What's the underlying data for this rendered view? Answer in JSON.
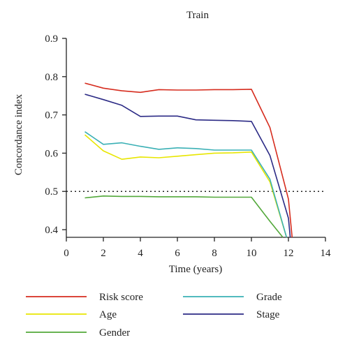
{
  "chart_data": {
    "type": "line",
    "title": "Train",
    "xlabel": "Time (years)",
    "ylabel": "Concordance index",
    "xlim": [
      0,
      14
    ],
    "ylim": [
      0.38,
      0.9
    ],
    "xticks": [
      0,
      2,
      4,
      6,
      8,
      10,
      12,
      14
    ],
    "xtick_labels": [
      "0",
      "2",
      "4",
      "6",
      "8",
      "10",
      "12",
      "14"
    ],
    "yticks": [
      0.4,
      0.5,
      0.6,
      0.7,
      0.8,
      0.9
    ],
    "ytick_labels": [
      "0.4",
      "0.5",
      "0.6",
      "0.7",
      "0.8",
      "0.9"
    ],
    "reference_line": {
      "y": 0.5,
      "style": "dotted"
    },
    "grid": false,
    "legend_position": "bottom",
    "series": [
      {
        "name": "Risk score",
        "color": "#d62c1e",
        "x": [
          1,
          2,
          3,
          4,
          5,
          6,
          7,
          8,
          9,
          10,
          11,
          12,
          12.2
        ],
        "y": [
          0.783,
          0.77,
          0.763,
          0.759,
          0.766,
          0.765,
          0.765,
          0.766,
          0.766,
          0.767,
          0.667,
          0.48,
          0.38
        ]
      },
      {
        "name": "Age",
        "color": "#e8e600",
        "x": [
          1,
          2,
          3,
          4,
          5,
          6,
          7,
          8,
          9,
          10,
          11,
          11.9
        ],
        "y": [
          0.648,
          0.606,
          0.584,
          0.59,
          0.588,
          0.592,
          0.596,
          0.6,
          0.601,
          0.603,
          0.525,
          0.38
        ]
      },
      {
        "name": "Gender",
        "color": "#52a83a",
        "x": [
          1,
          2,
          3,
          4,
          5,
          6,
          7,
          8,
          9,
          10,
          11,
          11.7
        ],
        "y": [
          0.483,
          0.488,
          0.487,
          0.487,
          0.486,
          0.486,
          0.486,
          0.485,
          0.485,
          0.485,
          0.422,
          0.38
        ]
      },
      {
        "name": "Grade",
        "color": "#3ab0b5",
        "x": [
          1,
          2,
          3,
          4,
          5,
          6,
          7,
          8,
          9,
          10,
          11,
          11.9
        ],
        "y": [
          0.656,
          0.623,
          0.627,
          0.618,
          0.61,
          0.614,
          0.612,
          0.608,
          0.608,
          0.608,
          0.532,
          0.38
        ]
      },
      {
        "name": "Stage",
        "color": "#2b2a85",
        "x": [
          1,
          2,
          3,
          4,
          5,
          6,
          7,
          8,
          9,
          10,
          11,
          12,
          12.1
        ],
        "y": [
          0.754,
          0.74,
          0.725,
          0.696,
          0.697,
          0.697,
          0.687,
          0.686,
          0.685,
          0.683,
          0.594,
          0.43,
          0.38
        ]
      }
    ]
  }
}
